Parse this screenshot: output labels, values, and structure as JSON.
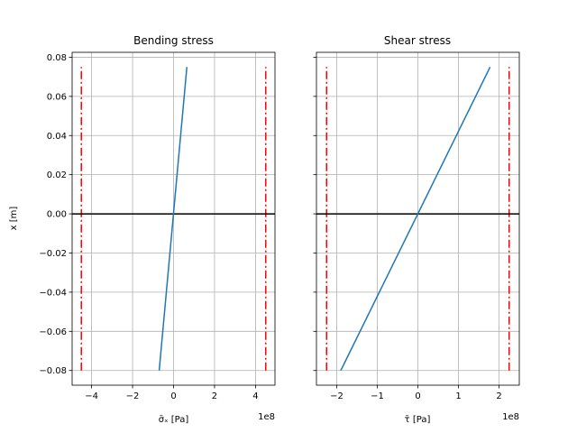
{
  "chart_data": [
    {
      "type": "line",
      "title": "Bending stress",
      "xlabel": "σ̄ₓ [Pa]",
      "ylabel": "x [m]",
      "x_offset_label": "1e8",
      "xlim": [
        -4.95,
        4.95
      ],
      "ylim": [
        -0.0875,
        0.0825
      ],
      "xticks": [
        -4,
        -2,
        0,
        2,
        4
      ],
      "xticklabels": [
        "−4",
        "−2",
        "0",
        "2",
        "4"
      ],
      "yticks": [
        -0.08,
        -0.06,
        -0.04,
        -0.02,
        0.0,
        0.02,
        0.04,
        0.06,
        0.08
      ],
      "yticklabels": [
        "−0.08",
        "−0.06",
        "−0.04",
        "−0.02",
        "0.00",
        "0.02",
        "0.04",
        "0.06",
        "0.08"
      ],
      "grid": true,
      "series": [
        {
          "style": "solid",
          "color": "#1f77b4",
          "x": [
            -0.7,
            0.65
          ],
          "y": [
            -0.08,
            0.075
          ]
        }
      ],
      "limit_lines": {
        "color": "#ff0000",
        "style": "dashdot",
        "x": [
          -4.5,
          4.5
        ],
        "y_range": [
          -0.08,
          0.075
        ]
      },
      "zero_line": {
        "color": "#000000",
        "y": 0.0
      }
    },
    {
      "type": "line",
      "title": "Shear stress",
      "xlabel": "τ̄ [Pa]",
      "ylabel": "",
      "x_offset_label": "1e8",
      "xlim": [
        -2.5,
        2.5
      ],
      "ylim": [
        -0.0875,
        0.0825
      ],
      "xticks": [
        -2,
        -1,
        0,
        1,
        2
      ],
      "xticklabels": [
        "−2",
        "−1",
        "0",
        "1",
        "2"
      ],
      "yticks": [
        -0.08,
        -0.06,
        -0.04,
        -0.02,
        0.0,
        0.02,
        0.04,
        0.06,
        0.08
      ],
      "yticklabels": [],
      "grid": true,
      "series": [
        {
          "style": "solid",
          "color": "#1f77b4",
          "x": [
            -1.9,
            1.78
          ],
          "y": [
            -0.08,
            0.075
          ]
        }
      ],
      "limit_lines": {
        "color": "#ff0000",
        "style": "dashdot",
        "x": [
          -2.25,
          2.25
        ],
        "y_range": [
          -0.08,
          0.075
        ]
      },
      "zero_line": {
        "color": "#000000",
        "y": 0.0
      }
    }
  ]
}
